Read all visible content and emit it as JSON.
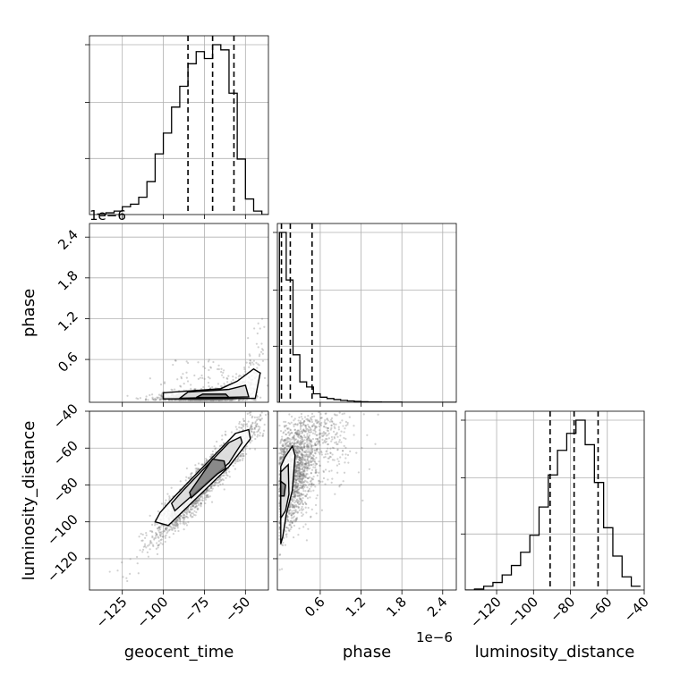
{
  "chart_data": {
    "type": "corner",
    "parameters": [
      "geocent_time",
      "phase",
      "luminosity_distance"
    ],
    "axis_labels": {
      "geocent_time": "geocent_time",
      "phase": "phase",
      "luminosity_distance": "luminosity_distance"
    },
    "offset_texts": {
      "geocent_time_hist": "1e−6",
      "phase_x": "1e−6"
    },
    "ranges": {
      "geocent_time": [
        -145,
        -36
      ],
      "phase": [
        -0.03,
        2.6
      ],
      "luminosity_distance": [
        -137,
        -40
      ]
    },
    "ticks": {
      "geocent_time": {
        "values": [
          -125,
          -100,
          -75,
          -50
        ],
        "labels": [
          "−125",
          "−100",
          "−75",
          "−50"
        ]
      },
      "phase": {
        "values": [
          0.6,
          1.2,
          1.8,
          2.4
        ],
        "labels": [
          "0.6",
          "1.2",
          "1.8",
          "2.4"
        ]
      },
      "luminosity_distance": {
        "values": [
          -120,
          -100,
          -80,
          -60,
          -40
        ],
        "labels": [
          "−120",
          "−100",
          "−80",
          "−60",
          "−40"
        ]
      }
    },
    "histograms": {
      "geocent_time": {
        "bin_edges": [
          -140,
          -135,
          -130,
          -125,
          -120,
          -115,
          -110,
          -105,
          -100,
          -95,
          -90,
          -85,
          -80,
          -75,
          -70,
          -65,
          -60,
          -55,
          -50,
          -45,
          -40,
          -36
        ],
        "counts": [
          0.003,
          0.01,
          0.02,
          0.045,
          0.06,
          0.1,
          0.19,
          0.35,
          0.47,
          0.62,
          0.74,
          0.87,
          0.94,
          0.9,
          0.98,
          0.95,
          0.7,
          0.32,
          0.09,
          0.02,
          0.0
        ],
        "quantiles": [
          -85,
          -70,
          -57
        ]
      },
      "phase": {
        "bin_edges": [
          0.0,
          0.1,
          0.2,
          0.3,
          0.4,
          0.5,
          0.6,
          0.7,
          0.8,
          0.9,
          1.0,
          1.1,
          1.2,
          1.3,
          1.4,
          1.5,
          1.6,
          1.7,
          1.8,
          1.9,
          2.0,
          2.1,
          2.2,
          2.3,
          2.4,
          2.5,
          2.6
        ],
        "counts": [
          1.0,
          0.72,
          0.28,
          0.12,
          0.09,
          0.05,
          0.03,
          0.022,
          0.016,
          0.011,
          0.008,
          0.005,
          0.003,
          0.002,
          0.002,
          0.001,
          0.001,
          0.001,
          0.0,
          0.0,
          0.0,
          0.0,
          0.0,
          0.0,
          0.0,
          0.0
        ],
        "quantiles": [
          0.03,
          0.16,
          0.48
        ]
      },
      "luminosity_distance": {
        "bin_edges": [
          -137,
          -132,
          -127,
          -122,
          -117,
          -112,
          -107,
          -102,
          -97,
          -92,
          -87,
          -82,
          -77,
          -72,
          -67,
          -62,
          -57,
          -52,
          -47,
          -42
        ],
        "counts": [
          0.0,
          0.005,
          0.02,
          0.04,
          0.08,
          0.13,
          0.2,
          0.29,
          0.44,
          0.61,
          0.74,
          0.83,
          0.9,
          0.77,
          0.57,
          0.33,
          0.18,
          0.07,
          0.02
        ],
        "quantiles": [
          -91,
          -78,
          -65
        ]
      }
    },
    "scatter_2d": [
      {
        "x_param": "geocent_time",
        "y_param": "phase",
        "points_per_sample_est": 1200,
        "contour_levels_hint": [
          [
            [
              -100,
              0.02
            ],
            [
              -100,
              0.11
            ],
            [
              -65,
              0.17
            ],
            [
              -55,
              0.28
            ],
            [
              -45,
              0.46
            ],
            [
              -41,
              0.4
            ],
            [
              -44,
              0.03
            ]
          ],
          [
            [
              -90,
              0.03
            ],
            [
              -85,
              0.12
            ],
            [
              -60,
              0.16
            ],
            [
              -50,
              0.22
            ],
            [
              -48,
              0.05
            ]
          ],
          [
            [
              -80,
              0.04
            ],
            [
              -76,
              0.09
            ],
            [
              -62,
              0.09
            ],
            [
              -60,
              0.04
            ]
          ]
        ]
      },
      {
        "x_param": "geocent_time",
        "y_param": "luminosity_distance",
        "contour_levels_hint": [
          [
            [
              -102,
              -95
            ],
            [
              -105,
              -100
            ],
            [
              -97,
              -102
            ],
            [
              -60,
              -70
            ],
            [
              -47,
              -55
            ],
            [
              -48,
              -50
            ],
            [
              -56,
              -52
            ],
            [
              -94,
              -87
            ]
          ],
          [
            [
              -95,
              -90
            ],
            [
              -93,
              -94
            ],
            [
              -60,
              -68
            ],
            [
              -52,
              -57
            ],
            [
              -53,
              -54
            ],
            [
              -60,
              -57
            ],
            [
              -88,
              -83
            ]
          ],
          [
            [
              -84,
              -84
            ],
            [
              -83,
              -87
            ],
            [
              -67,
              -74
            ],
            [
              -62,
              -71
            ],
            [
              -63,
              -67
            ],
            [
              -70,
              -66
            ]
          ]
        ]
      },
      {
        "x_param": "phase",
        "y_param": "luminosity_distance",
        "contour_levels_hint": [
          [
            [
              0.02,
              -112
            ],
            [
              0.05,
              -108
            ],
            [
              0.1,
              -96
            ],
            [
              0.19,
              -83
            ],
            [
              0.23,
              -64
            ],
            [
              0.19,
              -59
            ],
            [
              0.08,
              -65
            ],
            [
              0.02,
              -70
            ]
          ],
          [
            [
              0.02,
              -98
            ],
            [
              0.09,
              -94
            ],
            [
              0.14,
              -85
            ],
            [
              0.13,
              -69
            ],
            [
              0.02,
              -73
            ]
          ],
          [
            [
              0.02,
              -86
            ],
            [
              0.07,
              -86
            ],
            [
              0.09,
              -80
            ],
            [
              0.02,
              -78
            ]
          ]
        ]
      }
    ]
  }
}
